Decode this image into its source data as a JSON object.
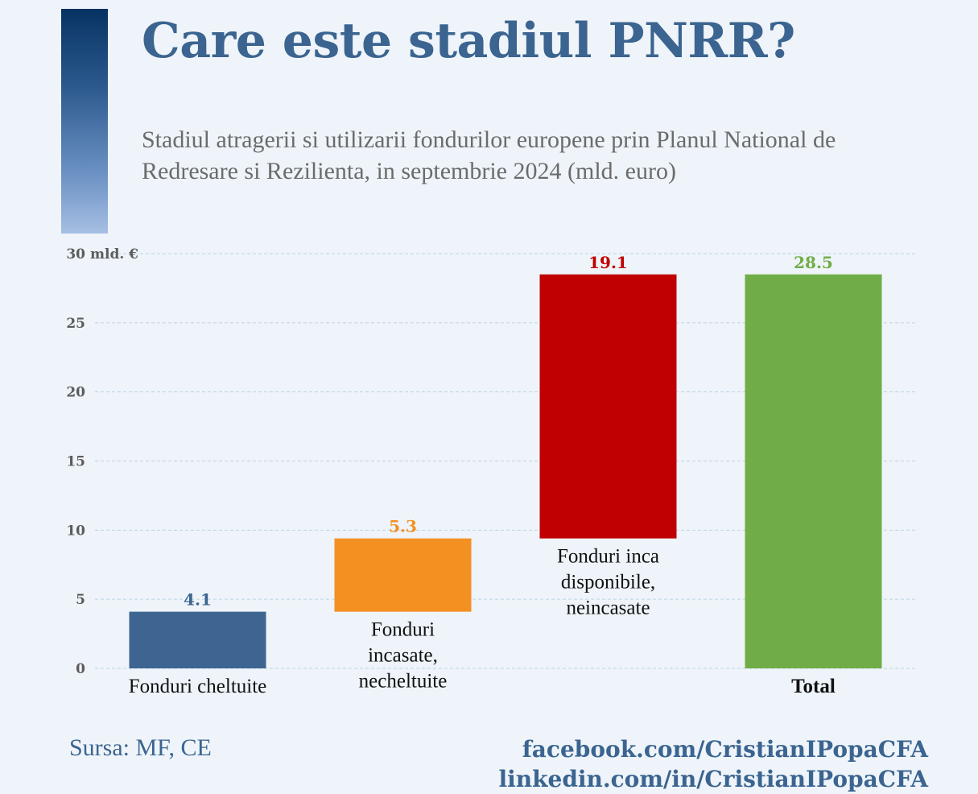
{
  "header": {
    "title": "Care este stadiul PNRR?",
    "subtitle": "Stadiul atragerii si utilizarii fondurilor europene prin Planul National de Redresare si Rezilienta, in septembrie 2024 (mld. euro)"
  },
  "chart_data": {
    "type": "bar",
    "variant": "waterfall",
    "title": "Care este stadiul PNRR?",
    "subtitle": "Stadiul atragerii si utilizarii fondurilor europene prin Planul National de Redresare si Rezilienta, in septembrie 2024 (mld. euro)",
    "ylabel": "mld. €",
    "ylim": [
      0,
      30
    ],
    "yticks": [
      0,
      5,
      10,
      15,
      20,
      25,
      30
    ],
    "grid": true,
    "legend": "none",
    "bars": [
      {
        "category": "Fonduri cheltuite",
        "label_lines": [
          "Fonduri cheltuite"
        ],
        "value": 4.1,
        "base": 0,
        "color": "#3e6591",
        "label_bold": false,
        "label_position": "below"
      },
      {
        "category": "Fonduri incasate, necheltuite",
        "label_lines": [
          "Fonduri",
          "incasate,",
          "necheltuite"
        ],
        "value": 5.3,
        "base": 4.1,
        "color": "#f39021",
        "label_bold": false,
        "label_position": "below"
      },
      {
        "category": "Fonduri inca disponibile, neincasate",
        "label_lines": [
          "Fonduri inca",
          "disponibile,",
          "neincasate"
        ],
        "value": 19.1,
        "base": 9.4,
        "color": "#c00000",
        "label_bold": false,
        "label_position": "below"
      },
      {
        "category": "Total",
        "label_lines": [
          "Total"
        ],
        "value": 28.5,
        "base": 0,
        "color": "#70ad47",
        "label_bold": true,
        "label_position": "below"
      }
    ],
    "value_label_colors": [
      "#3e6591",
      "#f39021",
      "#c00000",
      "#70ad47"
    ]
  },
  "footer": {
    "source": "Sursa: MF, CE",
    "facebook": "facebook.com/CristianIPopaCFA",
    "linkedin": "linkedin.com/in/CristianIPopaCFA"
  }
}
